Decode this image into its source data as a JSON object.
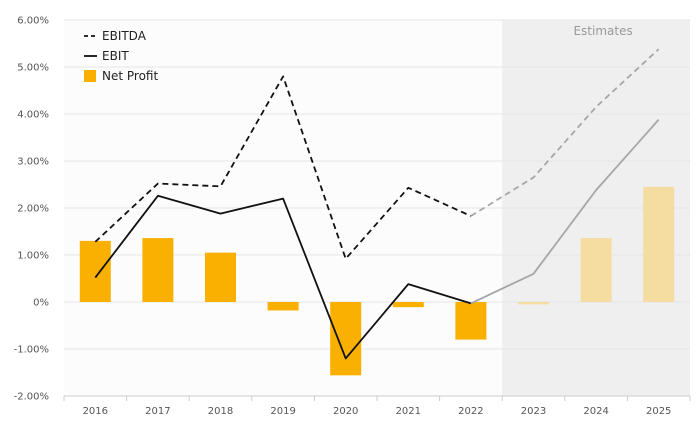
{
  "chart_data": {
    "type": "bar",
    "categories": [
      "2016",
      "2017",
      "2018",
      "2019",
      "2020",
      "2021",
      "2022",
      "2023",
      "2024",
      "2025"
    ],
    "series": [
      {
        "name": "EBITDA",
        "type": "line",
        "style": "dashed",
        "values": [
          1.28,
          2.52,
          2.46,
          4.8,
          0.92,
          2.43,
          1.83,
          2.65,
          4.15,
          5.38
        ]
      },
      {
        "name": "EBIT",
        "type": "line",
        "style": "solid",
        "values": [
          0.52,
          2.26,
          1.88,
          2.2,
          -1.2,
          0.38,
          -0.03,
          0.6,
          2.38,
          3.88
        ]
      },
      {
        "name": "Net Profit",
        "type": "bar",
        "values": [
          1.3,
          1.36,
          1.05,
          -0.18,
          -1.56,
          -0.11,
          -0.8,
          -0.05,
          1.36,
          2.45
        ]
      }
    ],
    "estimates": {
      "label": "Estimates",
      "from_category": "2023"
    },
    "y_ticks": [
      "6.00%",
      "5.00%",
      "4.00%",
      "3.00%",
      "2.00%",
      "1.00%",
      "0%",
      "-1.00%",
      "-2.00%"
    ],
    "ylim": [
      -2,
      6
    ],
    "legend_position": "top-left",
    "grid": true,
    "title": "",
    "xlabel": "",
    "ylabel": "",
    "colors": {
      "bar": "#f9b000",
      "bar_estimate": "#f5dca0",
      "line_actual": "#111111",
      "line_estimate": "#a6a6a6",
      "estimate_shade": "#efefef",
      "grid": "#e6e6e6",
      "axis": "#cccccc"
    }
  }
}
